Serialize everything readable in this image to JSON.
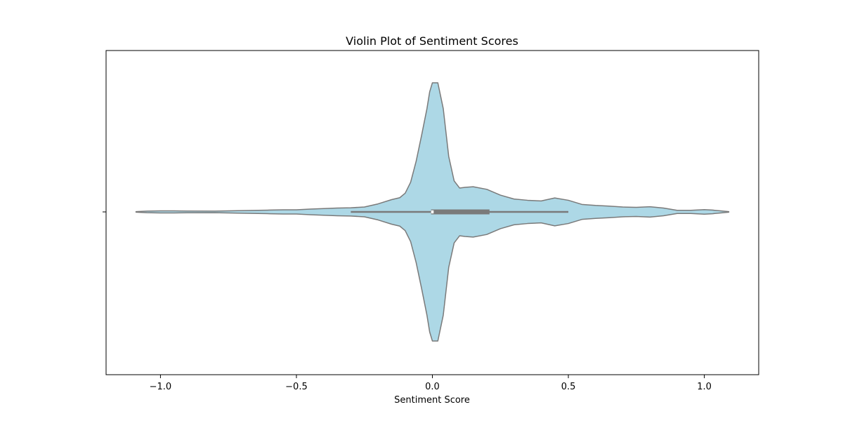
{
  "chart_data": {
    "type": "violin",
    "title": "Violin Plot of Sentiment Scores",
    "xlabel": "Sentiment Score",
    "ylabel": "",
    "xlim": [
      -1.2,
      1.2
    ],
    "x_ticks": [
      -1.0,
      -0.5,
      0.0,
      0.5,
      1.0
    ],
    "x_tick_labels": [
      "−1.0",
      "−0.5",
      "0.0",
      "0.5",
      "1.0"
    ],
    "y_ticks": [
      ""
    ],
    "orientation": "horizontal",
    "grid": false,
    "legend": "none",
    "colors": {
      "fill": "#add8e6",
      "outline": "#7a7a7a",
      "box": "#7a7a7a",
      "frame": "#000000"
    },
    "box_stats": {
      "whisker_low": -0.3,
      "q1": -0.005,
      "median": 0.0,
      "q3": 0.21,
      "whisker_high": 0.5
    },
    "density": [
      [
        -1.09,
        0.002
      ],
      [
        -1.05,
        0.006
      ],
      [
        -1.0,
        0.008
      ],
      [
        -0.95,
        0.008
      ],
      [
        -0.9,
        0.007
      ],
      [
        -0.8,
        0.006
      ],
      [
        -0.7,
        0.01
      ],
      [
        -0.6,
        0.014
      ],
      [
        -0.55,
        0.016
      ],
      [
        -0.5,
        0.016
      ],
      [
        -0.45,
        0.022
      ],
      [
        -0.4,
        0.026
      ],
      [
        -0.35,
        0.03
      ],
      [
        -0.3,
        0.032
      ],
      [
        -0.25,
        0.038
      ],
      [
        -0.2,
        0.062
      ],
      [
        -0.15,
        0.095
      ],
      [
        -0.12,
        0.11
      ],
      [
        -0.1,
        0.145
      ],
      [
        -0.08,
        0.23
      ],
      [
        -0.06,
        0.39
      ],
      [
        -0.04,
        0.59
      ],
      [
        -0.02,
        0.8
      ],
      [
        -0.01,
        0.93
      ],
      [
        0.0,
        1.0
      ],
      [
        0.02,
        1.0
      ],
      [
        0.04,
        0.8
      ],
      [
        0.06,
        0.43
      ],
      [
        0.08,
        0.24
      ],
      [
        0.1,
        0.185
      ],
      [
        0.12,
        0.19
      ],
      [
        0.15,
        0.195
      ],
      [
        0.2,
        0.175
      ],
      [
        0.25,
        0.13
      ],
      [
        0.3,
        0.1
      ],
      [
        0.35,
        0.09
      ],
      [
        0.4,
        0.085
      ],
      [
        0.45,
        0.108
      ],
      [
        0.5,
        0.09
      ],
      [
        0.55,
        0.058
      ],
      [
        0.6,
        0.05
      ],
      [
        0.65,
        0.045
      ],
      [
        0.7,
        0.038
      ],
      [
        0.75,
        0.035
      ],
      [
        0.8,
        0.04
      ],
      [
        0.85,
        0.03
      ],
      [
        0.9,
        0.012
      ],
      [
        0.95,
        0.012
      ],
      [
        1.0,
        0.018
      ],
      [
        1.03,
        0.014
      ],
      [
        1.06,
        0.008
      ],
      [
        1.09,
        0.002
      ]
    ]
  }
}
